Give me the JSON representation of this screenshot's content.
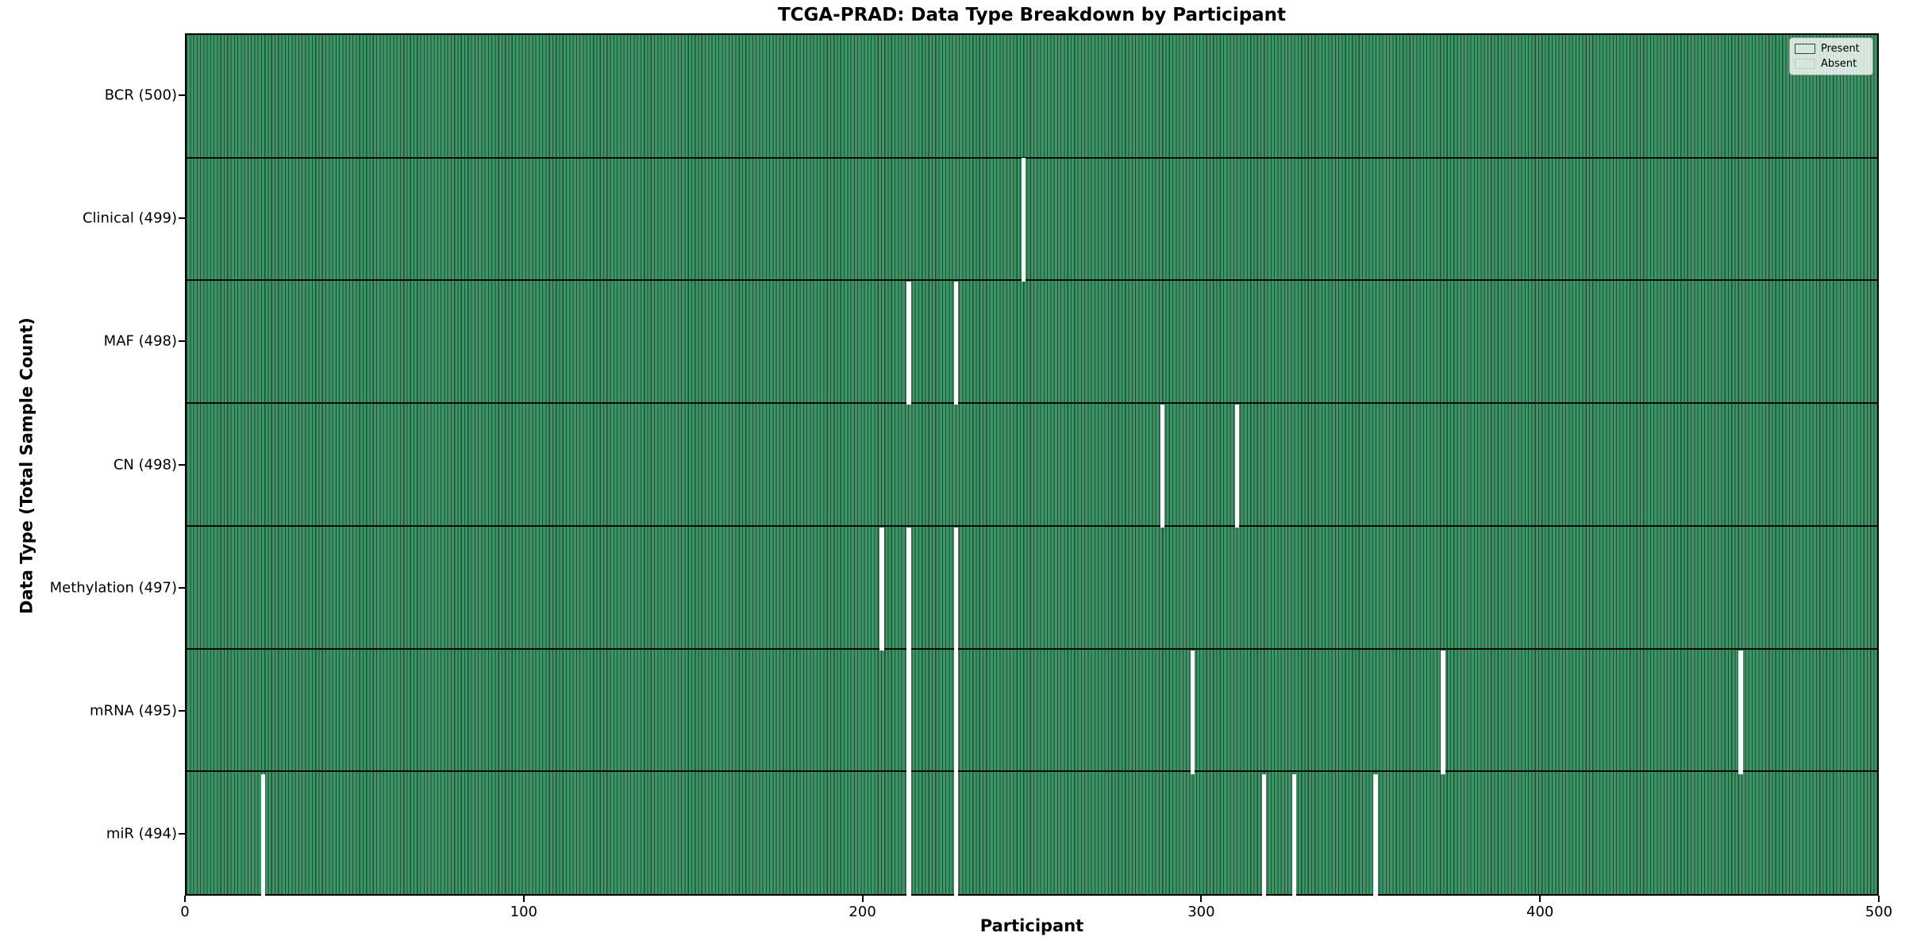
{
  "title": "TCGA-PRAD: Data Type Breakdown by Participant",
  "xlabel": "Participant",
  "ylabel": "Data Type (Total Sample Count)",
  "legend": {
    "present_label": "Present",
    "absent_label": "Absent"
  },
  "chart_data": {
    "type": "heatmap",
    "title": "TCGA-PRAD: Data Type Breakdown by Participant",
    "xlabel": "Participant",
    "ylabel": "Data Type (Total Sample Count)",
    "x_range": [
      0,
      500
    ],
    "x_ticks": [
      0,
      100,
      200,
      300,
      400,
      500
    ],
    "n_participants": 500,
    "legend_position": "upper right",
    "grid": false,
    "rows": [
      {
        "name": "BCR",
        "label": "BCR (500)",
        "total_count": 500,
        "absent_participants": []
      },
      {
        "name": "Clinical",
        "label": "Clinical (499)",
        "total_count": 499,
        "absent_participants": [
          247
        ]
      },
      {
        "name": "MAF",
        "label": "MAF (498)",
        "total_count": 498,
        "absent_participants": [
          213,
          227
        ]
      },
      {
        "name": "CN",
        "label": "CN (498)",
        "total_count": 498,
        "absent_participants": [
          288,
          310
        ]
      },
      {
        "name": "Methylation",
        "label": "Methylation (497)",
        "total_count": 497,
        "absent_participants": [
          205,
          213,
          227
        ]
      },
      {
        "name": "mRNA",
        "label": "mRNA (495)",
        "total_count": 495,
        "absent_participants": [
          213,
          227,
          297,
          371,
          459
        ]
      },
      {
        "name": "miR",
        "label": "miR (494)",
        "total_count": 494,
        "absent_participants": [
          22,
          213,
          227,
          318,
          327,
          351
        ]
      }
    ],
    "colors": {
      "present_fill": "#3E9466",
      "bar_edge": "#1d5034",
      "absent_fill": "#ffffff",
      "separator": "#0a0a0a"
    }
  }
}
